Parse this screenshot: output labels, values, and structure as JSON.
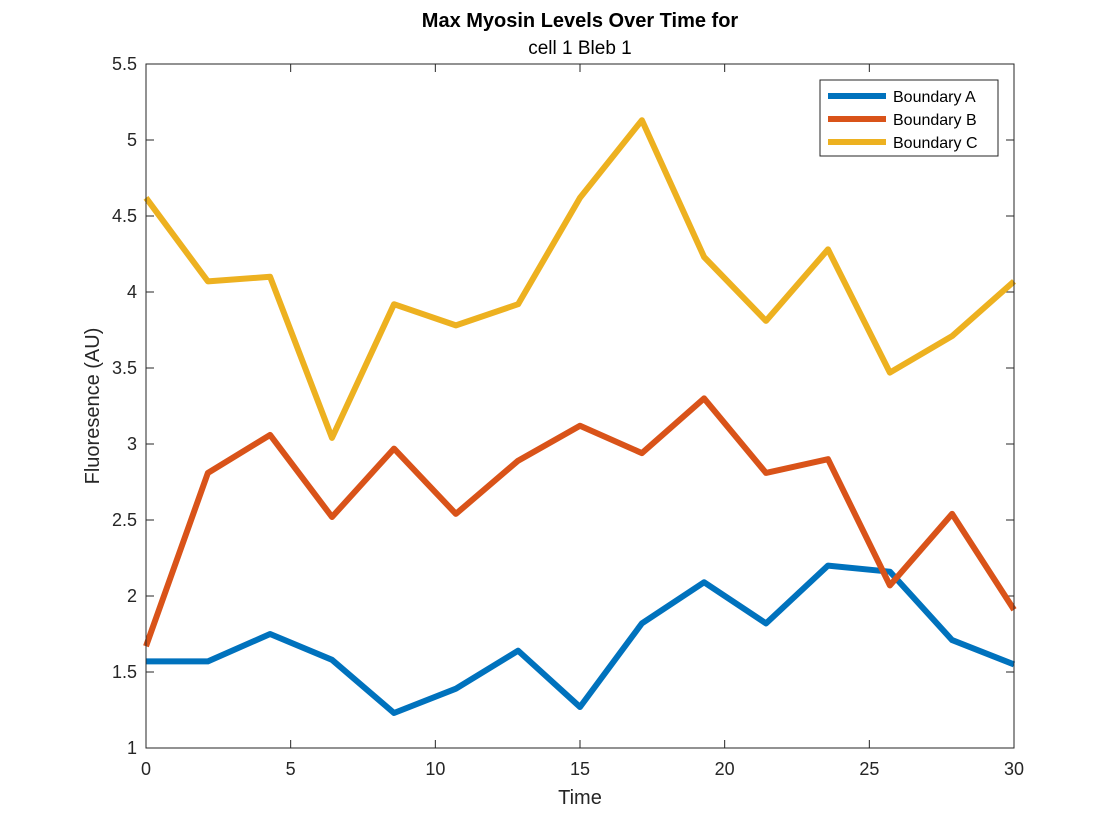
{
  "chart_data": {
    "type": "line",
    "title": "Max Myosin Levels Over Time for",
    "subtitle": "cell 1 Bleb 1",
    "xlabel": "Time",
    "ylabel": "Fluoresence (AU)",
    "xlim": [
      0,
      30
    ],
    "ylim": [
      1,
      5.5
    ],
    "xticks": [
      0,
      5,
      10,
      15,
      20,
      25,
      30
    ],
    "yticks": [
      1,
      1.5,
      2,
      2.5,
      3,
      3.5,
      4,
      4.5,
      5,
      5.5
    ],
    "grid": false,
    "legend_position": "top-right",
    "x": [
      0,
      2.14,
      4.29,
      6.43,
      8.57,
      10.71,
      12.86,
      15,
      17.14,
      19.29,
      21.43,
      23.57,
      25.71,
      27.86,
      30
    ],
    "series": [
      {
        "name": "Boundary A",
        "color": "#0072BD",
        "values": [
          1.57,
          1.57,
          1.75,
          1.58,
          1.23,
          1.39,
          1.64,
          1.27,
          1.82,
          2.09,
          1.82,
          2.2,
          2.16,
          1.71,
          1.55
        ]
      },
      {
        "name": "Boundary B",
        "color": "#D95319",
        "values": [
          1.67,
          2.81,
          3.06,
          2.52,
          2.97,
          2.54,
          2.89,
          3.12,
          2.94,
          3.3,
          2.81,
          2.9,
          2.07,
          2.54,
          1.91
        ]
      },
      {
        "name": "Boundary C",
        "color": "#EDB120",
        "values": [
          4.62,
          4.07,
          4.1,
          3.04,
          3.92,
          3.78,
          3.92,
          4.62,
          5.13,
          4.23,
          3.81,
          4.28,
          3.47,
          3.71,
          4.07
        ]
      }
    ]
  }
}
